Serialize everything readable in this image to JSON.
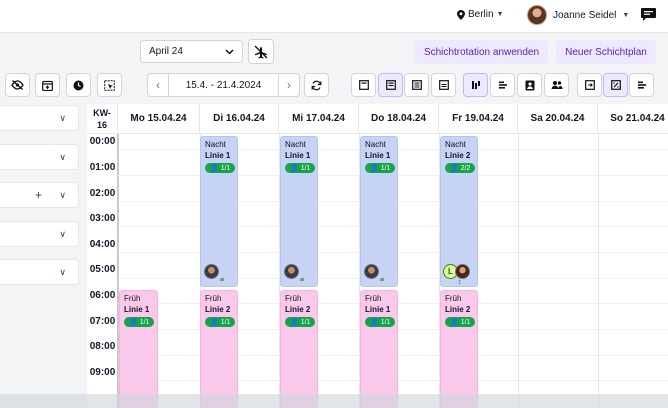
{
  "header": {
    "location": "Berlin",
    "user_name": "Joanne Seidel"
  },
  "controls": {
    "month": "April 24",
    "apply_rotation_label": "Schichtrotation anwenden",
    "new_plan_label": "Neuer Schichtplan",
    "date_range": "15.4. - 21.4.2024"
  },
  "calendar": {
    "kw_label": "KW-",
    "kw_number": "16",
    "days": [
      "Mo 15.04.24",
      "Di 16.04.24",
      "Mi 17.04.24",
      "Do 18.04.24",
      "Fr 19.04.24",
      "Sa 20.04.24",
      "So 21.04.24"
    ],
    "hours": [
      "00:00",
      "01:00",
      "02:00",
      "03:00",
      "04:00",
      "05:00",
      "06:00",
      "07:00",
      "08:00",
      "09:00"
    ],
    "night_shifts": [
      {
        "type": "Nacht",
        "line": "Linie 1",
        "staffing": "1/1"
      },
      {
        "type": "Nacht",
        "line": "Linie 1",
        "staffing": "1/1"
      },
      {
        "type": "Nacht",
        "line": "Linie 1",
        "staffing": "1/1"
      },
      {
        "type": "Nacht",
        "line": "Linie 2",
        "staffing": "2/2"
      }
    ],
    "early_shifts": [
      {
        "type": "Früh",
        "line": "Linie 1",
        "staffing": "1/1"
      },
      {
        "type": "Früh",
        "line": "Linie 2",
        "staffing": "1/1"
      },
      {
        "type": "Früh",
        "line": "Linie 2",
        "staffing": "1/1"
      },
      {
        "type": "Früh",
        "line": "Linie 1",
        "staffing": "1/1"
      },
      {
        "type": "Früh",
        "line": "Linie 2",
        "staffing": "1/1"
      }
    ]
  },
  "colors": {
    "accent": "#ede9fe",
    "accent_text": "#5b21b6",
    "night_shift": "#c6d3f5",
    "early_shift": "#fac8ea",
    "badge": "#16a34a"
  }
}
